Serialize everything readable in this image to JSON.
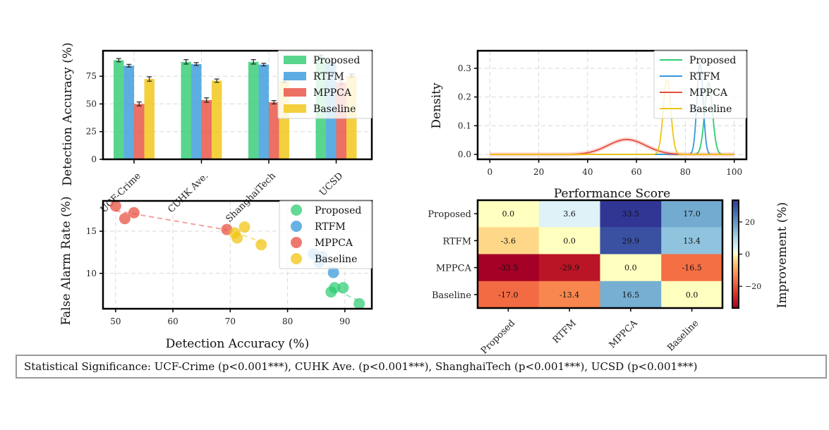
{
  "chart_data": [
    {
      "id": "bar",
      "type": "bar",
      "title": "",
      "xlabel": "",
      "ylabel": "Detection Accuracy (%)",
      "ylim": [
        0,
        98
      ],
      "yticks": [
        0,
        25,
        50,
        75
      ],
      "categories": [
        "UCF-Crime",
        "CUHK Ave.",
        "ShanghaiTech",
        "UCSD"
      ],
      "series": [
        {
          "name": "Proposed",
          "color": "#2ecc71",
          "values": [
            89.5,
            88.0,
            88.0,
            92.5
          ],
          "errors": [
            1.5,
            2.0,
            2.0,
            1.5
          ]
        },
        {
          "name": "RTFM",
          "color": "#3498db",
          "values": [
            84.5,
            86.0,
            85.5,
            88.0
          ],
          "errors": [
            1.2,
            1.3,
            1.2,
            1.2
          ]
        },
        {
          "name": "MPPCA",
          "color": "#e74c3c",
          "values": [
            50.0,
            53.5,
            51.5,
            69.5
          ],
          "errors": [
            1.8,
            2.0,
            1.5,
            2.0
          ]
        },
        {
          "name": "Baseline",
          "color": "#f1c40f",
          "values": [
            72.5,
            71.0,
            71.0,
            75.5
          ],
          "errors": [
            2.0,
            1.5,
            1.5,
            1.3
          ]
        }
      ],
      "grid": true,
      "legend": "top-right"
    },
    {
      "id": "density",
      "type": "line",
      "title": "",
      "xlabel": "Performance Score",
      "ylabel": "Density",
      "xlim": [
        -5,
        105
      ],
      "ylim": [
        -0.017,
        0.361
      ],
      "xticks": [
        0,
        20,
        40,
        60,
        80,
        100
      ],
      "yticks": [
        0.0,
        0.1,
        0.2,
        0.3
      ],
      "yticklabels": [
        "0.0",
        "0.1",
        "0.2",
        "0.3"
      ],
      "series": [
        {
          "name": "Proposed",
          "color": "#2ecc71",
          "mean": 89.5,
          "peak": 0.25
        },
        {
          "name": "RTFM",
          "color": "#3498db",
          "mean": 86.0,
          "peak": 0.32
        },
        {
          "name": "MPPCA",
          "color": "#e74c3c",
          "mean": 56.0,
          "peak": 0.052
        },
        {
          "name": "Baseline",
          "color": "#f1c40f",
          "mean": 72.5,
          "peak": 0.26
        }
      ],
      "x_range": [
        0,
        100
      ],
      "grid": true,
      "legend": "top-right"
    },
    {
      "id": "scatter",
      "type": "scatter",
      "title": "",
      "xlabel": "Detection Accuracy (%)",
      "ylabel": "False Alarm Rate (%)",
      "xlim": [
        47.8,
        94.7
      ],
      "ylim": [
        5.8,
        18.6
      ],
      "xticks": [
        50,
        60,
        70,
        80,
        90
      ],
      "yticks": [
        10,
        15
      ],
      "series": [
        {
          "name": "Proposed",
          "color": "#2ecc71",
          "points": [
            [
              87.6,
              7.8
            ],
            [
              88.2,
              8.3
            ],
            [
              89.7,
              8.3
            ],
            [
              92.5,
              6.4
            ]
          ]
        },
        {
          "name": "RTFM",
          "color": "#3498db",
          "points": [
            [
              84.5,
              12.3
            ],
            [
              85.5,
              11.3
            ],
            [
              86.0,
              12.0
            ],
            [
              88.0,
              10.1
            ]
          ]
        },
        {
          "name": "MPPCA",
          "color": "#e74c3c",
          "points": [
            [
              50.0,
              18.0
            ],
            [
              51.6,
              16.5
            ],
            [
              53.2,
              17.2
            ],
            [
              69.4,
              15.2
            ]
          ]
        },
        {
          "name": "Baseline",
          "color": "#f1c40f",
          "points": [
            [
              70.8,
              14.8
            ],
            [
              71.2,
              14.2
            ],
            [
              72.5,
              15.5
            ],
            [
              75.4,
              13.4
            ]
          ]
        }
      ],
      "trendlines": true,
      "grid": true,
      "legend": "top-right"
    },
    {
      "id": "heatmap",
      "type": "heatmap",
      "title": "",
      "rows": [
        "Proposed",
        "RTFM",
        "MPPCA",
        "Baseline"
      ],
      "cols": [
        "Proposed",
        "RTFM",
        "MPPCA",
        "Baseline"
      ],
      "values": [
        [
          0.0,
          3.6,
          33.5,
          17.0
        ],
        [
          -3.6,
          0.0,
          29.9,
          13.4
        ],
        [
          -33.5,
          -29.9,
          0.0,
          -16.5
        ],
        [
          -17.0,
          -13.4,
          16.5,
          0.0
        ]
      ],
      "colorbar": {
        "label": "Improvement (%)",
        "range": [
          -33.5,
          33.5
        ],
        "ticks": [
          -20,
          0,
          20
        ],
        "ticklabels": [
          "−20",
          "0",
          "20"
        ],
        "colormap": "RdYlBu"
      }
    }
  ],
  "footer": {
    "text": "Statistical Significance: UCF-Crime (p<0.001***), CUHK Ave. (p<0.001***), ShanghaiTech (p<0.001***), UCSD (p<0.001***)"
  }
}
